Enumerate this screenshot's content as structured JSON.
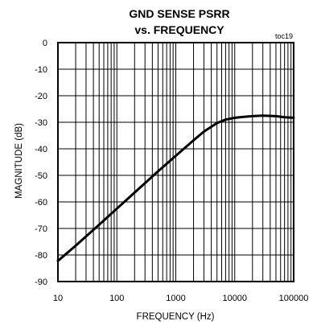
{
  "chart_data": {
    "type": "line",
    "title": "GND SENSE PSRR",
    "subtitle": "vs. FREQUENCY",
    "tag": "toc19",
    "xlabel": "FREQUENCY (Hz)",
    "ylabel": "MAGNITUDE (dB)",
    "x_scale": "log",
    "xlim": [
      10,
      100000
    ],
    "ylim": [
      -90,
      0
    ],
    "x_ticks": [
      "10",
      "100",
      "1000",
      "10000",
      "100000"
    ],
    "y_ticks": [
      "0",
      "-10",
      "-20",
      "-30",
      "-40",
      "-50",
      "-60",
      "-70",
      "-80",
      "-90"
    ],
    "grid": true,
    "series": [
      {
        "x": [
          10,
          20,
          50,
          100,
          200,
          500,
          1000,
          2000,
          3000,
          5000,
          7000,
          10000,
          15000,
          20000,
          30000,
          50000,
          70000,
          100000
        ],
        "y": [
          -82.2,
          -76.5,
          -68.6,
          -62.5,
          -56.5,
          -48.5,
          -42.6,
          -36.8,
          -33.5,
          -30.3,
          -29.0,
          -28.3,
          -27.9,
          -27.7,
          -27.5,
          -27.7,
          -28.1,
          -28.3
        ],
        "color": "#000000"
      }
    ]
  }
}
